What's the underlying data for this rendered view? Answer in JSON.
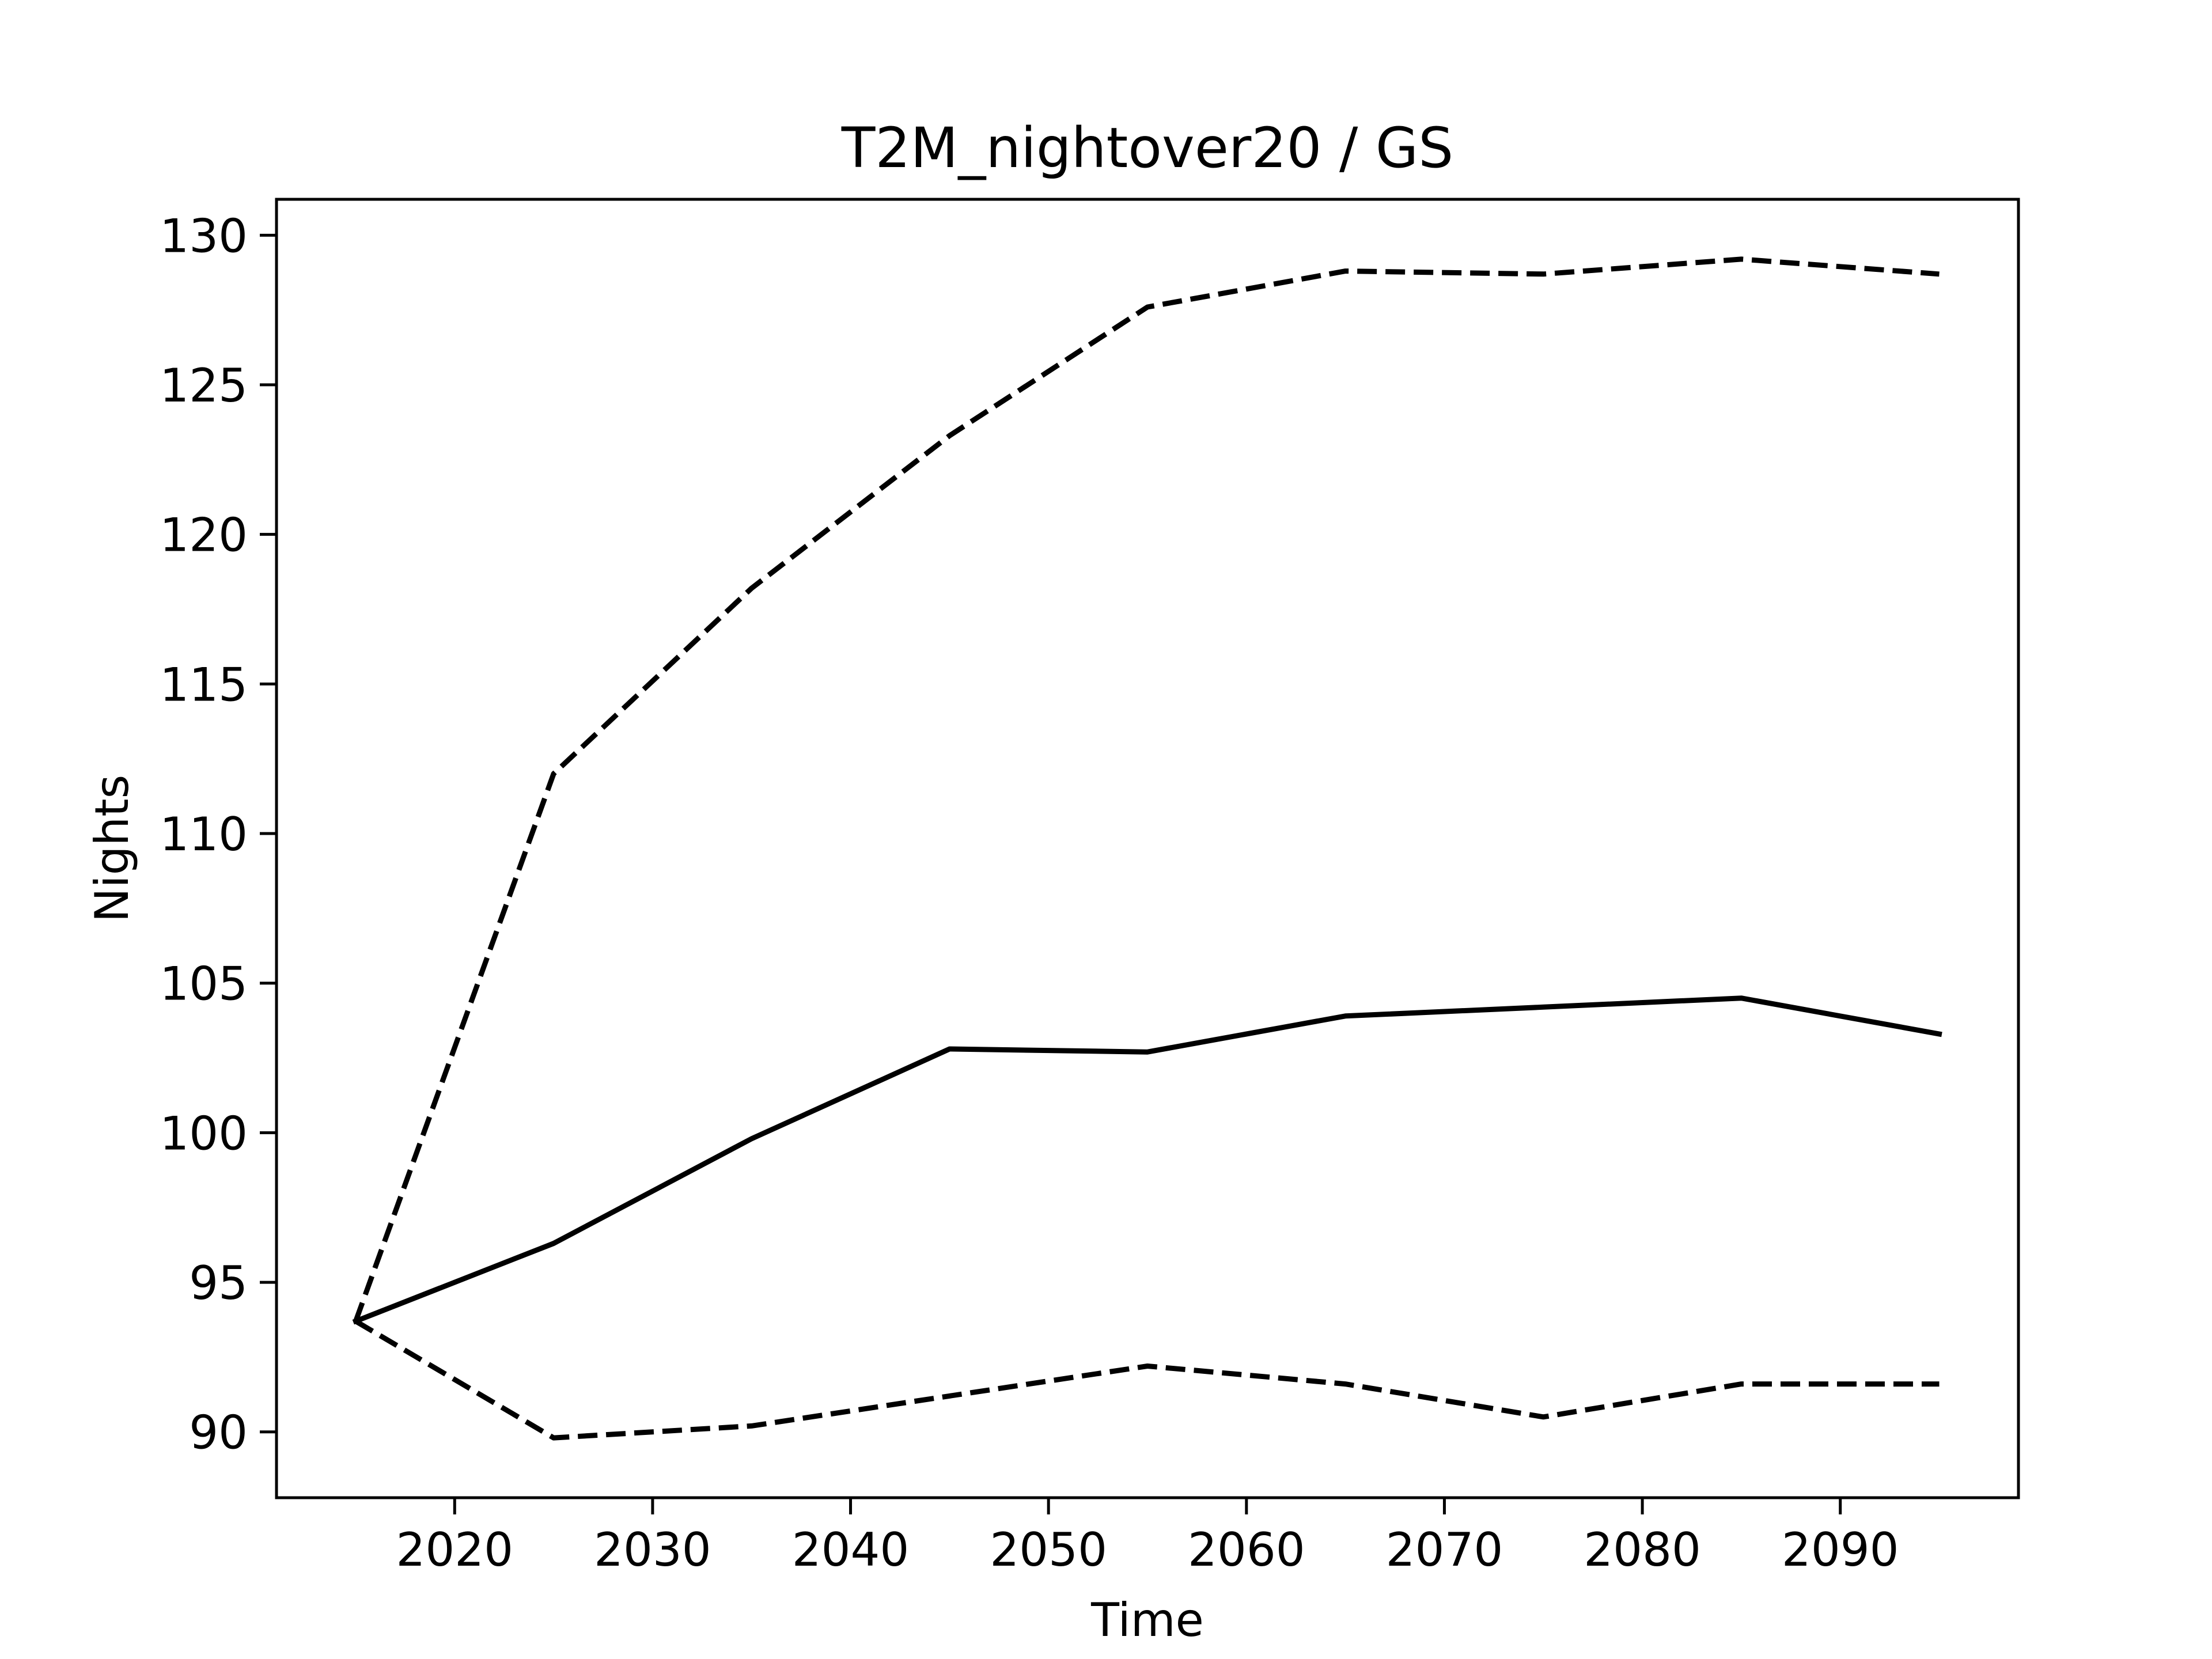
{
  "chart_data": {
    "type": "line",
    "title": "T2M_nightover20 / GS",
    "xlabel": "Time",
    "ylabel": "Nights",
    "xlim": [
      2011,
      2099
    ],
    "ylim": [
      87.8,
      131.2
    ],
    "xticks": [
      2020,
      2030,
      2040,
      2050,
      2060,
      2070,
      2080,
      2090
    ],
    "yticks": [
      90,
      95,
      100,
      105,
      110,
      115,
      120,
      125,
      130
    ],
    "x": [
      2015,
      2025,
      2035,
      2045,
      2055,
      2065,
      2075,
      2085,
      2095
    ],
    "grid": false,
    "legend": "none",
    "series": [
      {
        "style": "solid",
        "color": "#000000",
        "values": [
          93.7,
          96.3,
          99.8,
          102.8,
          102.7,
          103.9,
          104.2,
          104.5,
          103.3
        ]
      },
      {
        "style": "dashed",
        "color": "#000000",
        "values": [
          93.7,
          112.0,
          118.2,
          123.3,
          127.6,
          128.8,
          128.7,
          129.2,
          128.7
        ]
      },
      {
        "style": "dashed",
        "color": "#000000",
        "values": [
          93.7,
          89.8,
          90.2,
          91.2,
          92.2,
          91.6,
          90.5,
          91.6,
          91.6
        ]
      }
    ]
  }
}
